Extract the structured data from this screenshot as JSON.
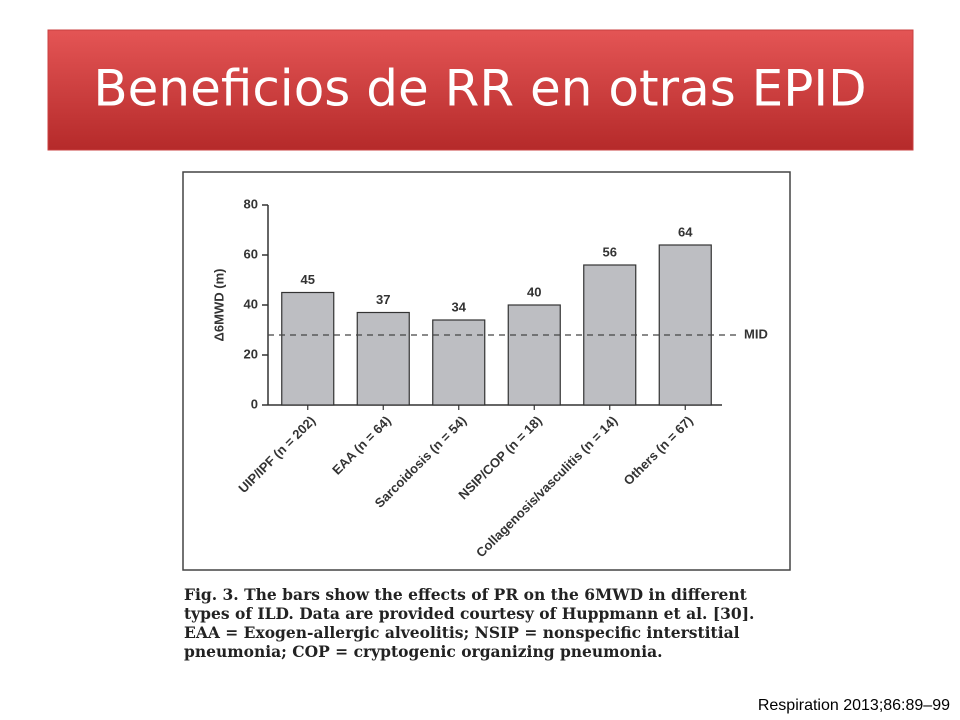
{
  "slide": {
    "title": "Beneficios de RR en otras EPID",
    "caption_label": "Fig. 3.",
    "caption_text": "The bars show the effects of PR on the 6MWD in different types of ILD. Data are provided courtesy of Huppmann et al. [30]. EAA = Exogen-allergic alveolitis; NSIP = nonspecific interstitial pneumonia; COP = cryptogenic organizing pneumonia.",
    "citation": "Respiration 2013;86:89–99"
  },
  "chart_data": {
    "type": "bar",
    "y_label": "Δ6MWD (m)",
    "categories": [
      "UIP/IPF (n = 202)",
      "EAA (n = 64)",
      "Sarcoidosis (n = 54)",
      "NSIP/COP (n = 18)",
      "Collagenosis/vasculitis (n = 14)",
      "Others (n = 67)"
    ],
    "values": [
      45,
      37,
      34,
      40,
      56,
      64
    ],
    "color": "#bdbec2",
    "ylim": [
      0,
      80
    ],
    "yticks": [
      0,
      20,
      40,
      60,
      80
    ],
    "reference_line": {
      "label": "MID",
      "value": 28
    }
  }
}
